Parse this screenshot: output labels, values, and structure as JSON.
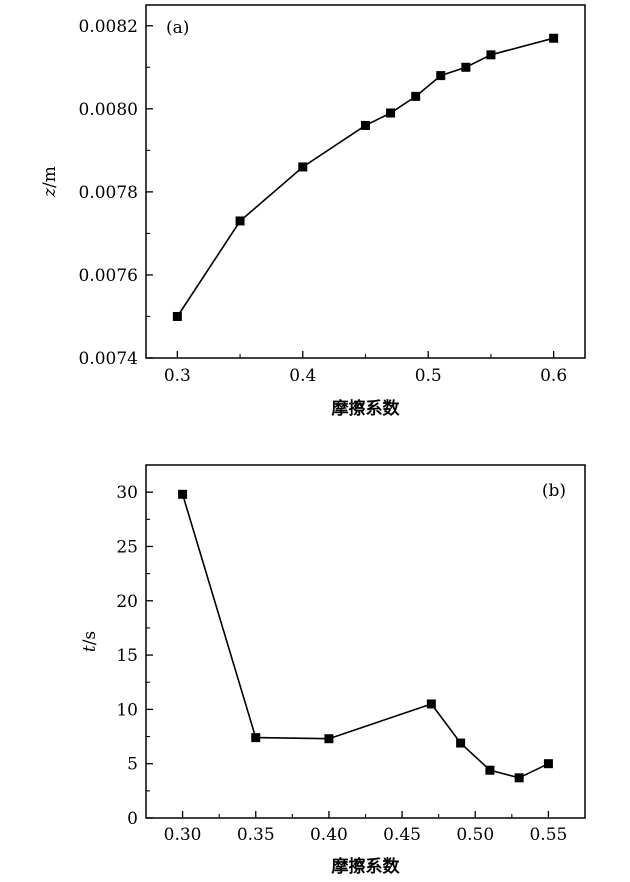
{
  "chart_data": [
    {
      "type": "line",
      "panel_label": "(a)",
      "xlabel": "摩擦系数",
      "ylabel": "z/m",
      "ylabel_var": "z",
      "ylabel_unit": "/m",
      "xlim": [
        0.275,
        0.625
      ],
      "ylim": [
        0.0074,
        0.00825
      ],
      "x_ticks": [
        0.3,
        0.4,
        0.5,
        0.6
      ],
      "x_tick_labels": [
        "0.3",
        "0.4",
        "0.5",
        "0.6"
      ],
      "y_ticks": [
        0.0074,
        0.0076,
        0.0078,
        0.008,
        0.0082
      ],
      "y_tick_labels": [
        "0.0074",
        "0.0076",
        "0.0078",
        "0.0080",
        "0.0082"
      ],
      "marker": "square",
      "color": "#000000",
      "series": [
        {
          "x": [
            0.3,
            0.35,
            0.4,
            0.45,
            0.47,
            0.49,
            0.51,
            0.53,
            0.55,
            0.6
          ],
          "y": [
            0.0075,
            0.00773,
            0.00786,
            0.00796,
            0.00799,
            0.00803,
            0.00808,
            0.0081,
            0.00813,
            0.00817
          ]
        }
      ]
    },
    {
      "type": "line",
      "panel_label": "(b)",
      "xlabel": "摩擦系数",
      "ylabel": "t/s",
      "ylabel_var": "t",
      "ylabel_unit": "/s",
      "xlim": [
        0.275,
        0.575
      ],
      "ylim": [
        0,
        32.5
      ],
      "x_ticks": [
        0.3,
        0.35,
        0.4,
        0.45,
        0.5,
        0.55
      ],
      "x_tick_labels": [
        "0.30",
        "0.35",
        "0.40",
        "0.45",
        "0.50",
        "0.55"
      ],
      "y_ticks": [
        0,
        5,
        10,
        15,
        20,
        25,
        30
      ],
      "y_tick_labels": [
        "0",
        "5",
        "10",
        "15",
        "20",
        "25",
        "30"
      ],
      "marker": "square",
      "color": "#000000",
      "series": [
        {
          "x": [
            0.3,
            0.35,
            0.4,
            0.47,
            0.49,
            0.51,
            0.53,
            0.55
          ],
          "y": [
            29.8,
            7.4,
            7.3,
            10.5,
            6.9,
            4.4,
            3.7,
            5.0
          ]
        }
      ]
    }
  ]
}
